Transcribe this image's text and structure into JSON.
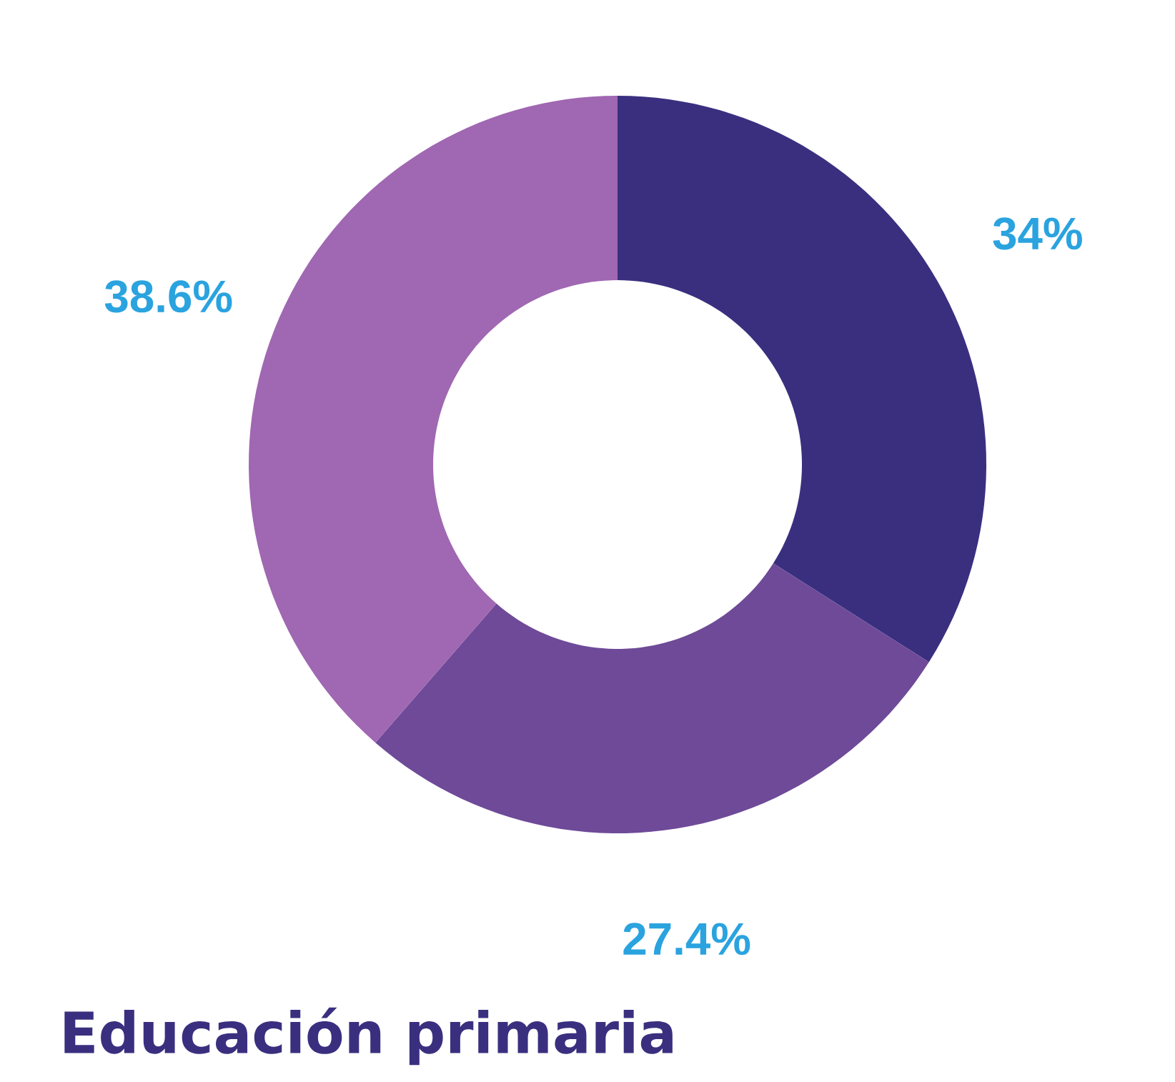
{
  "chart_data": {
    "type": "donut",
    "title": "Educación primaria",
    "categories": [
      null,
      null,
      null
    ],
    "values": [
      34,
      27.4,
      38.6
    ],
    "colors": [
      "#3a2f7f",
      "#6e4a98",
      "#a067b2"
    ],
    "value_labels": [
      "34%",
      "27.4%",
      "38.6%"
    ]
  }
}
